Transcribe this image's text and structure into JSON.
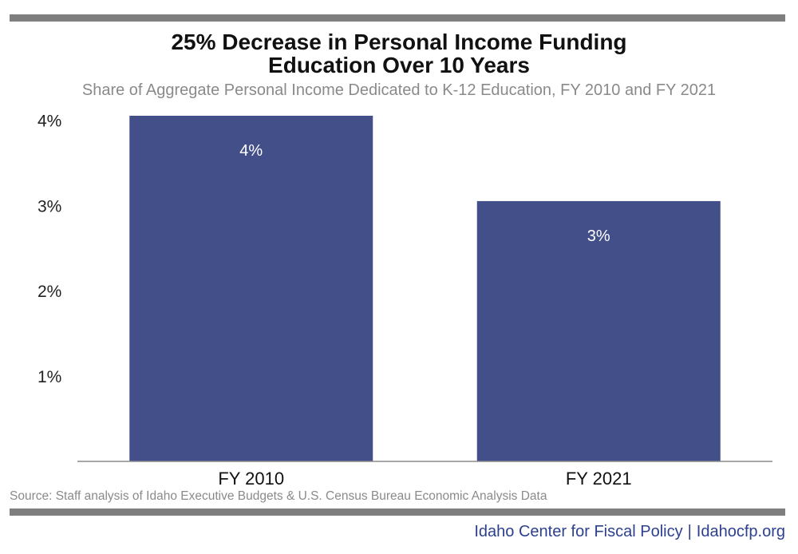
{
  "header": {
    "title_line1": "25% Decrease in Personal Income Funding",
    "title_line2": "Education Over 10 Years",
    "subtitle": "Share of Aggregate Personal Income Dedicated to K-12 Education, FY 2010 and FY 2021"
  },
  "footer": {
    "source": "Source: Staff analysis of Idaho Executive Budgets & U.S. Census Bureau Economic Analysis Data",
    "org": "Idaho Center for Fiscal Policy",
    "separator": "|",
    "site": "Idahocfp.org"
  },
  "colors": {
    "bar": "#434f88",
    "rule": "#7f7f80",
    "brand": "#2d3f8f"
  },
  "chart_data": {
    "type": "bar",
    "categories": [
      "FY 2010",
      "FY 2021"
    ],
    "values": [
      4.05,
      3.05
    ],
    "data_labels": [
      "4%",
      "3%"
    ],
    "y_ticks": [
      1,
      2,
      3,
      4
    ],
    "y_tick_labels": [
      "1%",
      "2%",
      "3%",
      "4%"
    ],
    "ylim": [
      0,
      4.05
    ],
    "grid": false,
    "legend": "none"
  }
}
